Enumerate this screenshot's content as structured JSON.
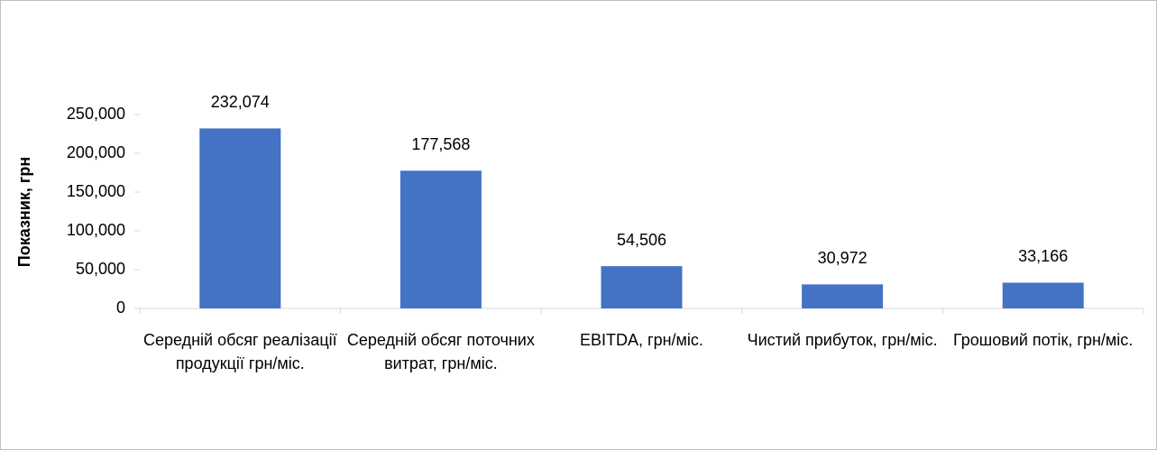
{
  "chart_data": {
    "type": "bar",
    "y_label": "Показник, грн",
    "categories": [
      "Середній обсяг реалізації продукції грн/міс.",
      "Середній обсяг поточних витрат, грн/міс.",
      "EBITDA, грн/міс.",
      "Чистий прибуток, грн/міс.",
      "Грошовий потік, грн/міс."
    ],
    "values": [
      232074,
      177568,
      54506,
      30972,
      33166
    ],
    "value_labels": [
      "232,074",
      "177,568",
      "54,506",
      "30,972",
      "33,166"
    ],
    "color": "#4472c4",
    "ylim": [
      0,
      250000
    ],
    "yticks": [
      0,
      {
        "value": 50000,
        "label": "50,000"
      },
      {
        "value": 100000,
        "label": "100,000"
      },
      {
        "value": 150000,
        "label": "150,000"
      },
      {
        "value": 200000,
        "label": "200,000"
      },
      {
        "value": 250000,
        "label": "250,000"
      }
    ],
    "grid": false
  }
}
